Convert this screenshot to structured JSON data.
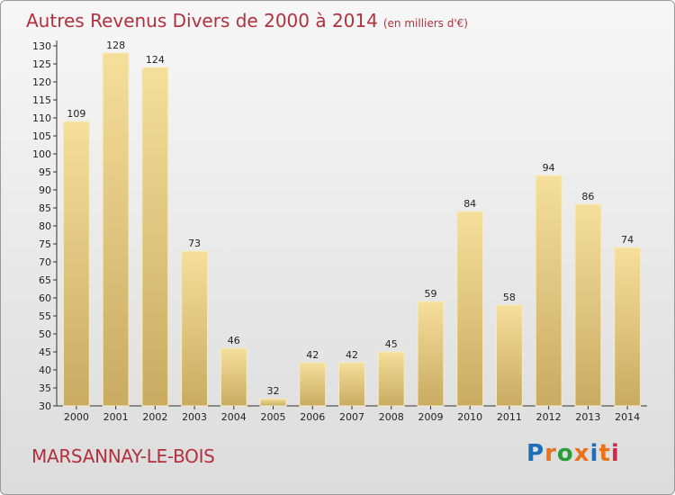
{
  "title": "Autres Revenus Divers de 2000 à 2014",
  "subtitle": "(en milliers d'€)",
  "location": "MARSANNAY-LE-BOIS",
  "brand": {
    "text": "Proxiti",
    "colors": [
      "#1d6fb8",
      "#e8731a",
      "#2a9d3a",
      "#e8731a",
      "#1d6fb8",
      "#e8731a",
      "#d6264b"
    ]
  },
  "colors": {
    "bar_light": "#f5df9b",
    "bar_dark": "#c9ab62",
    "accent": "#b3303d"
  },
  "chart_data": {
    "type": "bar",
    "title": "Autres Revenus Divers de 2000 à 2014",
    "subtitle": "(en milliers d'€)",
    "xlabel": "",
    "ylabel": "",
    "categories": [
      "2000",
      "2001",
      "2002",
      "2003",
      "2004",
      "2005",
      "2006",
      "2007",
      "2008",
      "2009",
      "2010",
      "2011",
      "2012",
      "2013",
      "2014"
    ],
    "values": [
      109,
      128,
      124,
      73,
      46,
      32,
      42,
      42,
      45,
      59,
      84,
      58,
      94,
      86,
      74
    ],
    "data_labels": [
      "109",
      "128",
      "124",
      "73",
      "46",
      "32",
      "42",
      "42",
      "45",
      "59",
      "84",
      "58",
      "94",
      "86",
      "74"
    ],
    "ylim": [
      30,
      130
    ],
    "yticks": [
      30,
      35,
      40,
      45,
      50,
      55,
      60,
      65,
      70,
      75,
      80,
      85,
      90,
      95,
      100,
      105,
      110,
      115,
      120,
      125,
      130
    ],
    "ytick_labels": [
      "30",
      "35",
      "40",
      "45",
      "50",
      "55",
      "60",
      "65",
      "70",
      "75",
      "80",
      "85",
      "90",
      "95",
      "100",
      "105",
      "110",
      "115",
      "120",
      "125",
      "130"
    ],
    "grid": false,
    "legend": "none"
  }
}
